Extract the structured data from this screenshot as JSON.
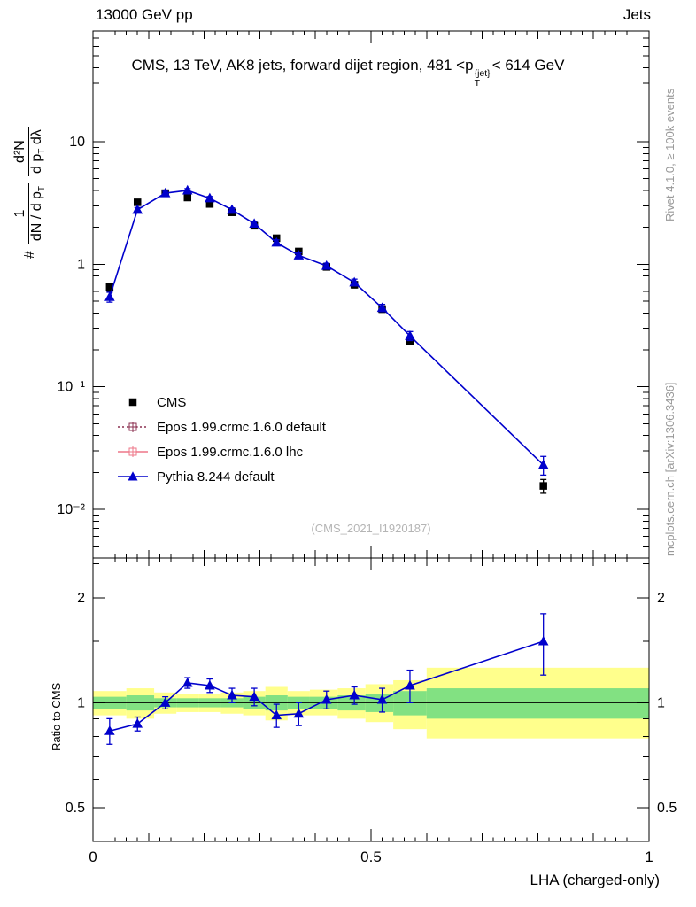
{
  "header": {
    "left": "13000 GeV pp",
    "right": "Jets"
  },
  "title": {
    "pre": "CMS, 13 TeV, AK8 jets, forward dijet region, 481 <p",
    "sup": "{jet}",
    "sub": "T",
    "post": "< 614 GeV"
  },
  "ylabel_main": {
    "hash": "#",
    "f1_num": "1",
    "f1_den_pre": "dN / d p",
    "f1_den_sub": "T",
    "f2_num": "d²N",
    "f2_den_pre": "d p",
    "f2_den_sub": "T",
    "f2_den_post": " dλ"
  },
  "side_notes": {
    "rivet": "Rivet 4.1.0, ≥ 100k events",
    "mcplots": "mcplots.cern.ch [arXiv:1306.3436]"
  },
  "watermark": "(CMS_2021_I1920187)",
  "chart_data": {
    "type": "line",
    "title": "CMS, 13 TeV, AK8 jets, forward dijet region, 481 < pT{jet} < 614 GeV",
    "xlabel": "LHA (charged-only)",
    "xlim": [
      0,
      1
    ],
    "xticks": {
      "values": [
        0,
        0.5,
        1
      ],
      "labels": [
        "0",
        "0.5",
        "1"
      ]
    },
    "main_panel": {
      "ylog": true,
      "ylim": [
        0.004,
        80
      ],
      "yticks": [
        10,
        1,
        0.1,
        0.01
      ],
      "ytick_labels": [
        "10",
        "1",
        "10⁻¹",
        "10⁻²"
      ]
    },
    "series": [
      {
        "name": "CMS",
        "marker": "square",
        "color": "#000000",
        "line": false,
        "x": [
          0.03,
          0.08,
          0.13,
          0.17,
          0.21,
          0.25,
          0.29,
          0.33,
          0.37,
          0.42,
          0.47,
          0.52,
          0.57,
          0.81
        ],
        "y": [
          0.65,
          3.2,
          3.8,
          3.5,
          3.1,
          2.65,
          2.06,
          1.63,
          1.27,
          0.95,
          0.68,
          0.43,
          0.236,
          0.0155
        ],
        "yerr": [
          0.05,
          0.15,
          0.18,
          0.15,
          0.13,
          0.11,
          0.09,
          0.08,
          0.06,
          0.05,
          0.04,
          0.025,
          0.015,
          0.002
        ]
      },
      {
        "name": "Pythia 8.244 default",
        "marker": "triangle",
        "color": "#0000cc",
        "line": true,
        "x": [
          0.03,
          0.08,
          0.13,
          0.17,
          0.21,
          0.25,
          0.29,
          0.33,
          0.37,
          0.42,
          0.47,
          0.52,
          0.57,
          0.81
        ],
        "y": [
          0.54,
          2.78,
          3.8,
          4.0,
          3.45,
          2.78,
          2.14,
          1.5,
          1.18,
          0.97,
          0.71,
          0.44,
          0.26,
          0.023
        ],
        "yerr": [
          0.05,
          0.12,
          0.14,
          0.14,
          0.12,
          0.1,
          0.09,
          0.08,
          0.06,
          0.05,
          0.045,
          0.03,
          0.022,
          0.004
        ]
      }
    ],
    "legend": [
      {
        "label": "CMS",
        "marker": "square",
        "color": "#000000",
        "line": "none"
      },
      {
        "label": "Epos 1.99.crmc.1.6.0 default",
        "marker": "cross-open",
        "color": "#8b3050",
        "line": "dotted"
      },
      {
        "label": "Epos 1.99.crmc.1.6.0 lhc",
        "marker": "cross-open",
        "color": "#ee7788",
        "line": "solid"
      },
      {
        "label": "Pythia 8.244 default",
        "marker": "triangle",
        "color": "#0000cc",
        "line": "solid"
      }
    ],
    "ratio_panel": {
      "ylabel": "Ratio to CMS",
      "ylog": true,
      "ylim": [
        0.4,
        2.6
      ],
      "yticks": [
        2,
        1,
        0.5
      ],
      "ytick_labels": [
        "2",
        "1",
        "0.5"
      ],
      "ratio": {
        "x": [
          0.03,
          0.08,
          0.13,
          0.17,
          0.21,
          0.25,
          0.29,
          0.33,
          0.37,
          0.42,
          0.47,
          0.52,
          0.57,
          0.81
        ],
        "y": [
          0.83,
          0.87,
          1.0,
          1.14,
          1.12,
          1.05,
          1.04,
          0.92,
          0.93,
          1.02,
          1.05,
          1.02,
          1.12,
          1.5
        ],
        "yerr": [
          0.07,
          0.04,
          0.04,
          0.04,
          0.05,
          0.05,
          0.06,
          0.07,
          0.07,
          0.06,
          0.06,
          0.08,
          0.12,
          0.3
        ]
      },
      "bands": {
        "edges": [
          0,
          0.06,
          0.11,
          0.15,
          0.19,
          0.23,
          0.27,
          0.31,
          0.35,
          0.39,
          0.44,
          0.49,
          0.54,
          0.6,
          1.0
        ],
        "yellow_lo": [
          0.92,
          0.9,
          0.93,
          0.94,
          0.94,
          0.93,
          0.92,
          0.89,
          0.92,
          0.92,
          0.9,
          0.88,
          0.84,
          0.79
        ],
        "yellow_hi": [
          1.08,
          1.1,
          1.07,
          1.06,
          1.06,
          1.07,
          1.08,
          1.11,
          1.08,
          1.09,
          1.1,
          1.13,
          1.16,
          1.26
        ],
        "green_lo": [
          0.96,
          0.95,
          0.97,
          0.97,
          0.97,
          0.97,
          0.96,
          0.95,
          0.96,
          0.96,
          0.95,
          0.94,
          0.92,
          0.9
        ],
        "green_hi": [
          1.04,
          1.05,
          1.03,
          1.03,
          1.03,
          1.03,
          1.04,
          1.05,
          1.04,
          1.04,
          1.05,
          1.06,
          1.08,
          1.1
        ],
        "yellow_color": "#ffff8c",
        "green_color": "#82e182"
      }
    }
  }
}
